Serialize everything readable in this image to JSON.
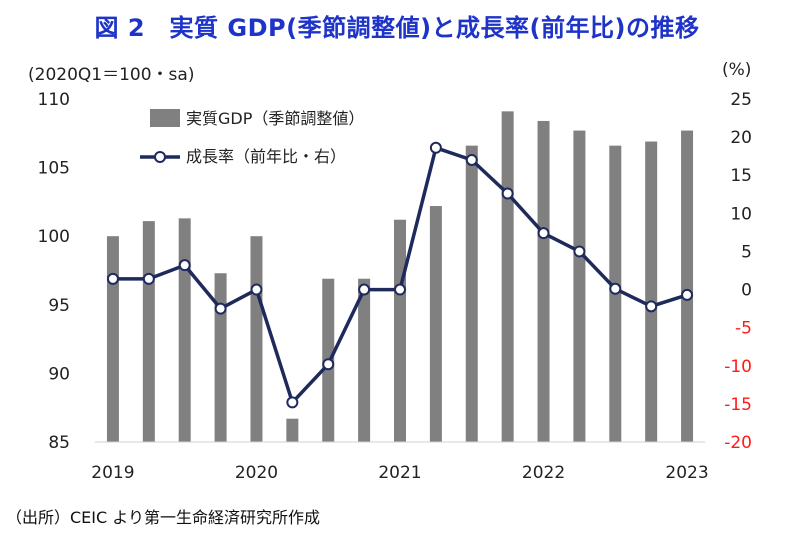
{
  "title": "図 2　実質 GDP(季節調整値)と成長率(前年比)の推移",
  "unit_left": "(2020Q1＝100・sa)",
  "unit_right": "(%)",
  "source": "（出所）CEIC より第一生命経済研究所作成",
  "colors": {
    "title": "#1e33c8",
    "bar": "#808080",
    "line": "#1f2a5c",
    "negative_tick": "#ff1a1a"
  },
  "chart_data": {
    "type": "bar+line",
    "categories": [
      "2019Q1",
      "2019Q2",
      "2019Q3",
      "2019Q4",
      "2020Q1",
      "2020Q2",
      "2020Q3",
      "2020Q4",
      "2021Q1",
      "2021Q2",
      "2021Q3",
      "2021Q4",
      "2022Q1",
      "2022Q2",
      "2022Q3",
      "2022Q4",
      "2023Q1"
    ],
    "x_tick_labels": [
      "2019",
      "2020",
      "2021",
      "2022",
      "2023"
    ],
    "series": [
      {
        "name": "実質GDP（季節調整値）",
        "type": "bar",
        "axis": "left",
        "values": [
          100.0,
          101.1,
          101.3,
          97.3,
          100.0,
          86.7,
          96.9,
          96.9,
          101.2,
          102.2,
          106.6,
          109.1,
          108.4,
          107.7,
          106.6,
          106.9,
          107.7
        ]
      },
      {
        "name": "成長率（前年比・右）",
        "type": "line",
        "axis": "right",
        "values": [
          1.4,
          1.4,
          3.2,
          -2.5,
          0.0,
          -14.8,
          -9.8,
          0.0,
          0.0,
          18.6,
          17.0,
          12.6,
          7.4,
          5.0,
          0.1,
          -2.2,
          -0.7
        ]
      }
    ],
    "y_left": {
      "min": 85,
      "max": 110,
      "ticks": [
        "85",
        "90",
        "95",
        "100",
        "105",
        "110"
      ]
    },
    "y_right": {
      "min": -20,
      "max": 25,
      "ticks": [
        "-20",
        "-15",
        "-10",
        "-5",
        "0",
        "5",
        "10",
        "15",
        "20",
        "25"
      ]
    },
    "legend_position": "top-left"
  }
}
